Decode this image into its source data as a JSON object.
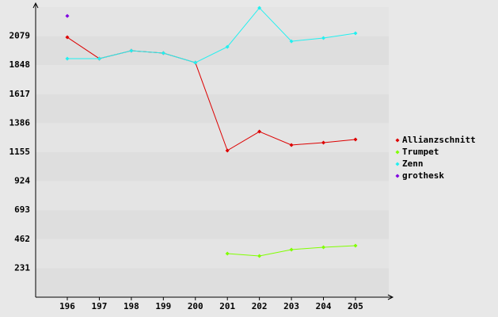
{
  "chart_data": {
    "type": "line",
    "categories": [
      "196",
      "197",
      "198",
      "199",
      "200",
      "201",
      "202",
      "203",
      "204",
      "205"
    ],
    "series": [
      {
        "name": "Allianzschnitt",
        "color": "#dd0000",
        "values": [
          2070,
          1900,
          1963,
          1944,
          1868,
          1168,
          1319,
          1212,
          1231,
          1256
        ]
      },
      {
        "name": "Trumpet",
        "color": "#80ff00",
        "values": [
          null,
          null,
          null,
          null,
          null,
          347,
          328,
          379,
          398,
          410
        ]
      },
      {
        "name": "Zenn",
        "color": "#22f0f0",
        "values": [
          1900,
          1900,
          1963,
          1944,
          1868,
          1994,
          2304,
          2038,
          2064,
          2102
        ]
      },
      {
        "name": "grothesk",
        "color": "#8000e0",
        "values": [
          2240,
          null,
          null,
          null,
          null,
          null,
          null,
          null,
          null,
          null
        ]
      }
    ],
    "ylim": [
      0,
      2310
    ],
    "yticks": [
      231,
      462,
      693,
      924,
      1155,
      1386,
      1617,
      1848,
      2079
    ],
    "grid": true,
    "legend": "right"
  }
}
